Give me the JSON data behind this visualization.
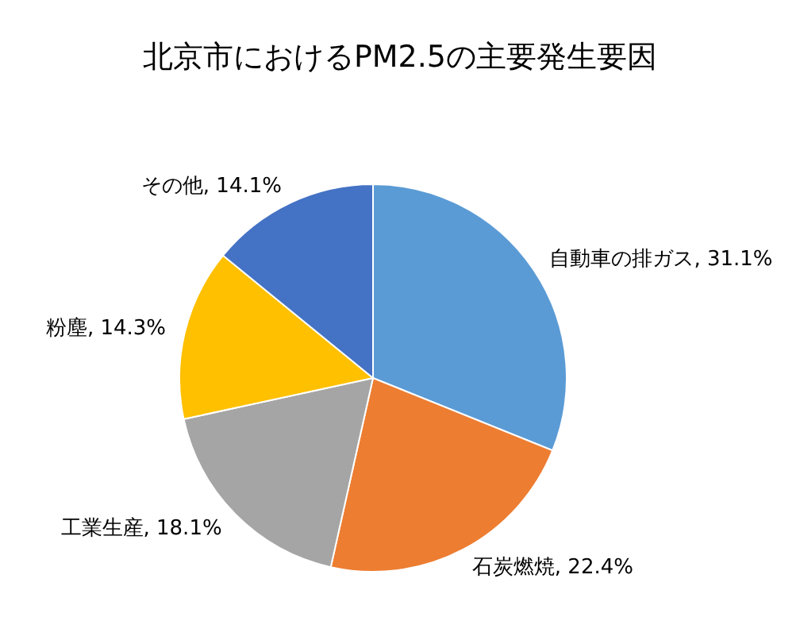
{
  "chart_data": {
    "type": "pie",
    "title": "北京市におけるPM2.5の主要発生要因",
    "categories": [
      "自動車の排ガス",
      "石炭燃焼",
      "工業生産",
      "粉塵",
      "その他"
    ],
    "values": [
      31.1,
      22.4,
      18.1,
      14.3,
      14.1
    ],
    "value_labels": [
      "31.1%",
      "22.4%",
      "18.1%",
      "14.3%",
      "14.1%"
    ],
    "colors": [
      "#5b9bd5",
      "#ed7d31",
      "#a5a5a5",
      "#ffc000",
      "#4472c4"
    ]
  }
}
